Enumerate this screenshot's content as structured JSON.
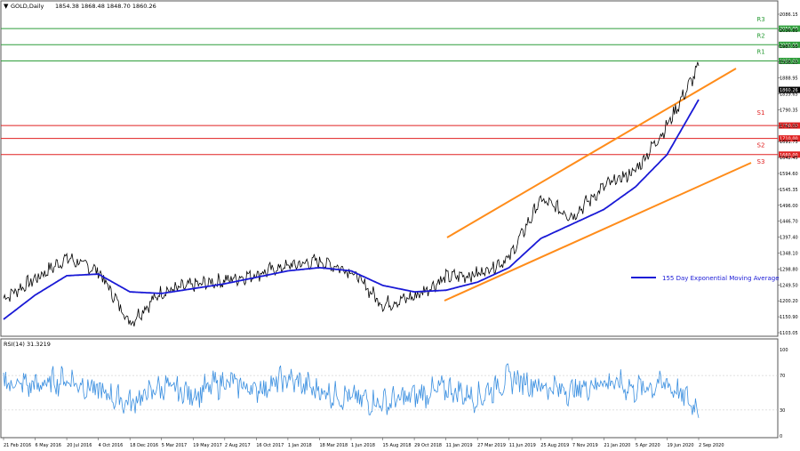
{
  "header": {
    "symbol": "GOLD,Daily",
    "ohlc": "1854.38 1868.48 1848.70 1860.26"
  },
  "price_axis": {
    "ticks": [
      "2086.15",
      "2036.85",
      "1987.55",
      "1938.25",
      "1888.95",
      "1839.65",
      "1790.35",
      "1741.05",
      "1691.75",
      "1642.45",
      "1594.60",
      "1545.35",
      "1496.00",
      "1446.70",
      "1397.40",
      "1348.10",
      "1298.80",
      "1249.50",
      "1200.20",
      "1150.90",
      "1103.05"
    ],
    "current_price": "1860.26"
  },
  "levels": [
    {
      "label": "R3",
      "price": 2050,
      "tag": "2050.00",
      "color": "#2e9e3a"
    },
    {
      "label": "R2",
      "price": 2000,
      "tag": "2000.00",
      "color": "#2e9e3a"
    },
    {
      "label": "R1",
      "price": 1950,
      "tag": "1950.00",
      "color": "#2e9e3a"
    },
    {
      "label": "S1",
      "price": 1750,
      "tag": "1750.00",
      "color": "#e02020"
    },
    {
      "label": "S2",
      "price": 1710,
      "tag": "1710.00",
      "color": "#e02020"
    },
    {
      "label": "S3",
      "price": 1660,
      "tag": "1660.00",
      "color": "#e02020"
    }
  ],
  "legend": {
    "ema_label": "155 Day Exponential Moving Average",
    "ema_color": "#1a1ad6"
  },
  "colors": {
    "price_line": "#000000",
    "channel": "#ff8c1a",
    "rsi_line": "#3a8fe0",
    "resistance": "#2e9e3a",
    "support": "#e02020"
  },
  "rsi_panel": {
    "title": "RSI(14) 31.3219",
    "ticks": [
      "100",
      "70",
      "30",
      "0"
    ]
  },
  "x_axis": {
    "dates": [
      "21 Feb 2016",
      "6 May 2016",
      "20 Jul 2016",
      "4 Oct 2016",
      "18 Dec 2016",
      "5 Mar 2017",
      "19 May 2017",
      "2 Aug 2017",
      "16 Oct 2017",
      "1 Jan 2018",
      "18 Mar 2018",
      "1 Jun 2018",
      "15 Aug 2018",
      "29 Oct 2018",
      "11 Jan 2019",
      "27 Mar 2019",
      "11 Jun 2019",
      "25 Aug 2019",
      "7 Nov 2019",
      "21 Jan 2020",
      "5 Apr 2020",
      "19 Jun 2020",
      "2 Sep 2020"
    ]
  },
  "chart_data": {
    "type": "line",
    "title": "GOLD,Daily",
    "x": [
      "21 Feb 2016",
      "6 May 2016",
      "20 Jul 2016",
      "4 Oct 2016",
      "18 Dec 2016",
      "5 Mar 2017",
      "19 May 2017",
      "2 Aug 2017",
      "16 Oct 2017",
      "1 Jan 2018",
      "18 Mar 2018",
      "1 Jun 2018",
      "15 Aug 2018",
      "29 Oct 2018",
      "11 Jan 2019",
      "27 Mar 2019",
      "11 Jun 2019",
      "25 Aug 2019",
      "7 Nov 2019",
      "21 Jan 2020",
      "5 Apr 2020",
      "19 Jun 2020",
      "2 Sep 2020"
    ],
    "ylim": [
      1103.05,
      2100
    ],
    "series": [
      {
        "values": [
          1215,
          1275,
          1340,
          1300,
          1140,
          1235,
          1255,
          1270,
          1290,
          1315,
          1330,
          1300,
          1195,
          1220,
          1280,
          1290,
          1340,
          1520,
          1470,
          1560,
          1610,
          1750,
          1930
        ]
      },
      {
        "name": "155 Day Exponential Moving Average",
        "values": [
          1150,
          1225,
          1285,
          1290,
          1235,
          1230,
          1245,
          1260,
          1280,
          1300,
          1310,
          1300,
          1255,
          1235,
          1240,
          1265,
          1310,
          1400,
          1445,
          1490,
          1560,
          1660,
          1830
        ]
      }
    ],
    "rsi": {
      "title": "RSI(14) 31.3219",
      "ylim": [
        0,
        100
      ],
      "values": [
        62,
        58,
        66,
        52,
        38,
        57,
        48,
        63,
        54,
        66,
        52,
        44,
        38,
        46,
        55,
        44,
        67,
        58,
        52,
        64,
        54,
        61,
        31
      ]
    },
    "levels": [
      2050,
      2000,
      1950,
      1750,
      1710,
      1660
    ]
  }
}
